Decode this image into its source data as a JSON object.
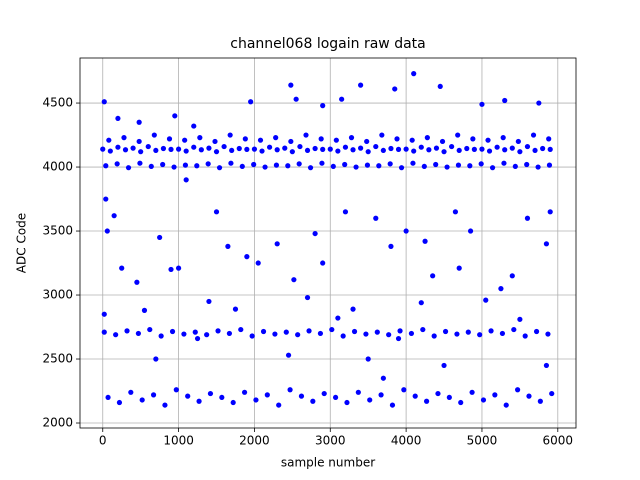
{
  "chart_data": {
    "type": "scatter",
    "title": "channel068 logain raw data",
    "x_label": "sample number",
    "y_label": "ADC Code",
    "color": "#0000ff",
    "grid": true,
    "xlim": [
      -300,
      6240
    ],
    "ylim": [
      1961,
      4852
    ],
    "xticks": [
      0,
      1000,
      2000,
      3000,
      4000,
      5000,
      6000
    ],
    "yticks": [
      2000,
      2500,
      3000,
      3500,
      4000,
      4500
    ],
    "x": [
      0,
      100,
      200,
      300,
      400,
      500,
      600,
      700,
      800,
      900,
      1000,
      1100,
      1200,
      1300,
      1400,
      1500,
      1600,
      1700,
      1800,
      1900,
      2000,
      2100,
      2200,
      2300,
      2400,
      2500,
      2600,
      2700,
      2800,
      2900,
      3000,
      3100,
      3200,
      3300,
      3400,
      3500,
      3600,
      3700,
      3800,
      3900,
      4000,
      4100,
      4200,
      4300,
      4400,
      4500,
      4600,
      4700,
      4800,
      4900,
      5000,
      5100,
      5200,
      5300,
      5400,
      5500,
      5600,
      5700,
      5800,
      5900,
      40,
      190,
      340,
      490,
      640,
      790,
      940,
      1090,
      1240,
      1390,
      1540,
      1690,
      1840,
      1990,
      2140,
      2290,
      2440,
      2590,
      2740,
      2890,
      3040,
      3190,
      3340,
      3490,
      3640,
      3790,
      3940,
      4090,
      4240,
      4390,
      4540,
      4690,
      4840,
      4990,
      5140,
      5290,
      5440,
      5590,
      5740,
      5890,
      80,
      280,
      480,
      680,
      880,
      1080,
      1280,
      1480,
      1680,
      1880,
      2080,
      2280,
      2480,
      2680,
      2880,
      3080,
      3280,
      3480,
      3680,
      3880,
      4080,
      4280,
      4480,
      4680,
      4880,
      5080,
      5280,
      5480,
      5680,
      5880,
      20,
      170,
      320,
      470,
      620,
      770,
      920,
      1070,
      1220,
      1370,
      1520,
      1670,
      1820,
      1970,
      2120,
      2270,
      2420,
      2570,
      2720,
      2870,
      3020,
      3170,
      3320,
      3470,
      3620,
      3770,
      3920,
      4070,
      4220,
      4370,
      4520,
      4670,
      4820,
      4970,
      5120,
      5270,
      5420,
      5570,
      5720,
      5870,
      70,
      220,
      370,
      520,
      670,
      820,
      970,
      1120,
      1270,
      1420,
      1570,
      1720,
      1870,
      2020,
      2170,
      2320,
      2470,
      2620,
      2770,
      2920,
      3070,
      3220,
      3370,
      3520,
      3670,
      3820,
      3970,
      4120,
      4270,
      4420,
      4570,
      4720,
      4870,
      5020,
      5170,
      5320,
      5470,
      5620,
      5770,
      5920,
      20,
      20,
      40,
      60,
      150,
      200,
      250,
      450,
      480,
      550,
      700,
      750,
      900,
      950,
      1000,
      1100,
      1200,
      1250,
      1400,
      1500,
      1650,
      1750,
      1900,
      1950,
      2050,
      2300,
      2450,
      2480,
      2520,
      2550,
      2700,
      2800,
      2900,
      2900,
      3100,
      3150,
      3200,
      3300,
      3400,
      3500,
      3600,
      3700,
      3800,
      3850,
      3900,
      4000,
      4100,
      4200,
      4250,
      4350,
      4450,
      4500,
      4650,
      4700,
      4850,
      5000,
      5050,
      5250,
      5300,
      5400,
      5500,
      5600,
      5750,
      5850,
      5850,
      5900
    ],
    "values": [
      4140,
      4125,
      4155,
      4135,
      4148,
      4120,
      4160,
      4130,
      4145,
      4138,
      4140,
      4125,
      4155,
      4135,
      4148,
      4120,
      4160,
      4130,
      4145,
      4138,
      4140,
      4125,
      4155,
      4135,
      4148,
      4120,
      4160,
      4130,
      4145,
      4138,
      4140,
      4125,
      4155,
      4135,
      4148,
      4120,
      4160,
      4130,
      4145,
      4138,
      4140,
      4125,
      4155,
      4135,
      4148,
      4120,
      4160,
      4130,
      4145,
      4138,
      4140,
      4125,
      4155,
      4135,
      4148,
      4120,
      4160,
      4130,
      4145,
      4138,
      4010,
      4025,
      3995,
      4030,
      4005,
      4020,
      4000,
      4015,
      4010,
      4025,
      3995,
      4030,
      4005,
      4020,
      4000,
      4015,
      4010,
      4025,
      3995,
      4030,
      4005,
      4020,
      4000,
      4015,
      4010,
      4025,
      3995,
      4030,
      4005,
      4020,
      4000,
      4015,
      4010,
      4025,
      3995,
      4030,
      4005,
      4020,
      4000,
      4015,
      4210,
      4230,
      4200,
      4250,
      4220,
      4210,
      4230,
      4200,
      4250,
      4220,
      4210,
      4230,
      4200,
      4250,
      4220,
      4210,
      4230,
      4200,
      4250,
      4220,
      4210,
      4230,
      4200,
      4250,
      4220,
      4210,
      4230,
      4200,
      4250,
      4220,
      2710,
      2690,
      2720,
      2700,
      2730,
      2680,
      2715,
      2695,
      2710,
      2690,
      2720,
      2700,
      2730,
      2680,
      2715,
      2695,
      2710,
      2690,
      2720,
      2700,
      2730,
      2680,
      2715,
      2695,
      2710,
      2690,
      2720,
      2700,
      2730,
      2680,
      2715,
      2695,
      2710,
      2690,
      2720,
      2700,
      2730,
      2680,
      2715,
      2695,
      2200,
      2160,
      2240,
      2180,
      2220,
      2140,
      2260,
      2210,
      2170,
      2230,
      2200,
      2160,
      2240,
      2180,
      2220,
      2140,
      2260,
      2210,
      2170,
      2230,
      2200,
      2160,
      2240,
      2180,
      2220,
      2140,
      2260,
      2210,
      2170,
      2230,
      2200,
      2160,
      2240,
      2180,
      2220,
      2140,
      2260,
      2210,
      2170,
      2230,
      4510,
      2850,
      3750,
      3500,
      3620,
      4380,
      3210,
      3100,
      4350,
      2880,
      2500,
      3450,
      3200,
      4400,
      3210,
      3900,
      4320,
      2660,
      2950,
      3650,
      3380,
      2890,
      3300,
      4510,
      3250,
      3400,
      2530,
      4640,
      3120,
      4530,
      2980,
      3480,
      4480,
      3250,
      2820,
      4530,
      3650,
      2890,
      4640,
      2500,
      3600,
      2350,
      3380,
      4610,
      2660,
      3500,
      4730,
      2940,
      3420,
      3150,
      4630,
      2450,
      3650,
      3210,
      3500,
      4490,
      2960,
      3050,
      4520,
      3150,
      2810,
      3600,
      4500,
      3400,
      2450,
      3650
    ]
  }
}
